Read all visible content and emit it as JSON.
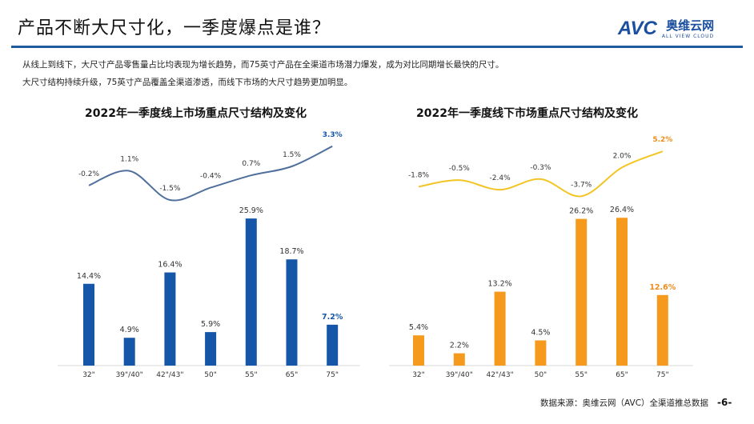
{
  "header": {
    "title": "产品不断大尺寸化，一季度爆点是谁？",
    "logo": {
      "main": "AVC",
      "cn": "奥维云网",
      "en": "ALL VIEW CLOUD"
    }
  },
  "description": [
    "从线上到线下，大尺寸产品零售量占比均表现为增长趋势，而75英寸产品在全渠道市场潜力爆发，成为对比同期增长最快的尺寸。",
    "大尺寸结构持续升级，75英寸产品覆盖全渠道渗透，而线下市场的大尺寸趋势更加明显。"
  ],
  "chart_data": [
    {
      "type": "bar",
      "title": "2022年一季度线上市场重点尺寸结构及变化",
      "categories": [
        "32\"",
        "39\"/40\"",
        "42\"/43\"",
        "50\"",
        "55\"",
        "65\"",
        "75\""
      ],
      "values": [
        14.4,
        4.9,
        16.4,
        5.9,
        25.9,
        18.7,
        7.2
      ],
      "value_labels": [
        "14.4%",
        "4.9%",
        "16.4%",
        "5.9%",
        "25.9%",
        "18.7%",
        "7.2%"
      ],
      "change_line": [
        -0.2,
        1.1,
        -1.5,
        -0.4,
        0.7,
        1.5,
        3.3
      ],
      "change_labels": [
        "-0.2%",
        "1.1%",
        "-1.5%",
        "-0.4%",
        "0.7%",
        "1.5%",
        "3.3%"
      ],
      "bar_color": "#1556a8",
      "line_color": "#4f6f9c",
      "highlight_color": "#1556a8"
    },
    {
      "type": "bar",
      "title": "2022年一季度线下市场重点尺寸结构及变化",
      "categories": [
        "32\"",
        "39\"/40\"",
        "42\"/43\"",
        "50\"",
        "55\"",
        "65\"",
        "75\""
      ],
      "values": [
        5.4,
        2.2,
        13.2,
        4.5,
        26.2,
        26.4,
        12.6
      ],
      "value_labels": [
        "5.4%",
        "2.2%",
        "13.2%",
        "4.5%",
        "26.2%",
        "26.4%",
        "12.6%"
      ],
      "change_line": [
        -1.8,
        -0.5,
        -2.4,
        -0.3,
        -3.7,
        2.0,
        5.2
      ],
      "change_labels": [
        "-1.8%",
        "-0.5%",
        "-2.4%",
        "-0.3%",
        "-3.7%",
        "2.0%",
        "5.2%"
      ],
      "bar_color": "#f59a1d",
      "line_color": "#f2c524",
      "highlight_color": "#f08c1a"
    }
  ],
  "footer": {
    "source": "数据来源：奥维云网（AVC）全渠道推总数据",
    "page": "-6-"
  }
}
